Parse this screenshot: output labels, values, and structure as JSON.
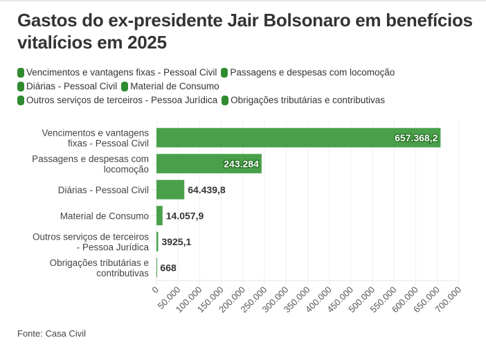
{
  "title": "Gastos do ex-presidente Jair Bolsonaro em benefícios vitalícios em 2025",
  "source": "Fonte: Casa Civil",
  "colors": {
    "bar": "#4aa04a",
    "legend_swatch": "#2e8b2e",
    "label_dark": "#333333",
    "label_inside": "#ffffff",
    "grid": "#eeeeee"
  },
  "legend": [
    [
      "Vencimentos e vantagens fixas - Pessoal Civil",
      "Passagens e despesas com locomoção"
    ],
    [
      "Diárias - Pessoal Civil",
      "Material de Consumo"
    ],
    [
      "Outros serviços de terceiros - Pessoa Jurídica",
      "Obrigações tributárias e contributivas"
    ]
  ],
  "chart_data": {
    "type": "bar",
    "orientation": "horizontal",
    "title": "Gastos do ex-presidente Jair Bolsonaro em benefícios vitalícios em 2025",
    "xlabel": "",
    "ylabel": "",
    "xlim": [
      0,
      700000
    ],
    "grid": true,
    "legend_position": "top",
    "categories": [
      [
        "Vencimentos e vantagens",
        "fixas - Pessoal Civil"
      ],
      [
        "Passagens e despesas com",
        "locomoção"
      ],
      [
        "Diárias - Pessoal Civil"
      ],
      [
        "Material de Consumo"
      ],
      [
        "Outros serviços de terceiros",
        "- Pessoa Jurídica"
      ],
      [
        "Obrigações tributárias e",
        "contributivas"
      ]
    ],
    "values": [
      657368.2,
      243284,
      64439.8,
      14057.9,
      3925.1,
      668
    ],
    "data_labels": [
      "657.368,2",
      "243.284",
      "64.439,8",
      "14.057,9",
      "3925,1",
      "668"
    ],
    "xticks": [
      0,
      50000,
      100000,
      150000,
      200000,
      250000,
      300000,
      350000,
      400000,
      450000,
      500000,
      550000,
      600000,
      650000,
      700000
    ],
    "xtick_labels": [
      "0",
      "50.000",
      "100.000",
      "150.000",
      "200.000",
      "250.000",
      "300.000",
      "350.000",
      "400.000",
      "450.000",
      "500.000",
      "550.000",
      "600.000",
      "650.000",
      "700.000"
    ]
  }
}
